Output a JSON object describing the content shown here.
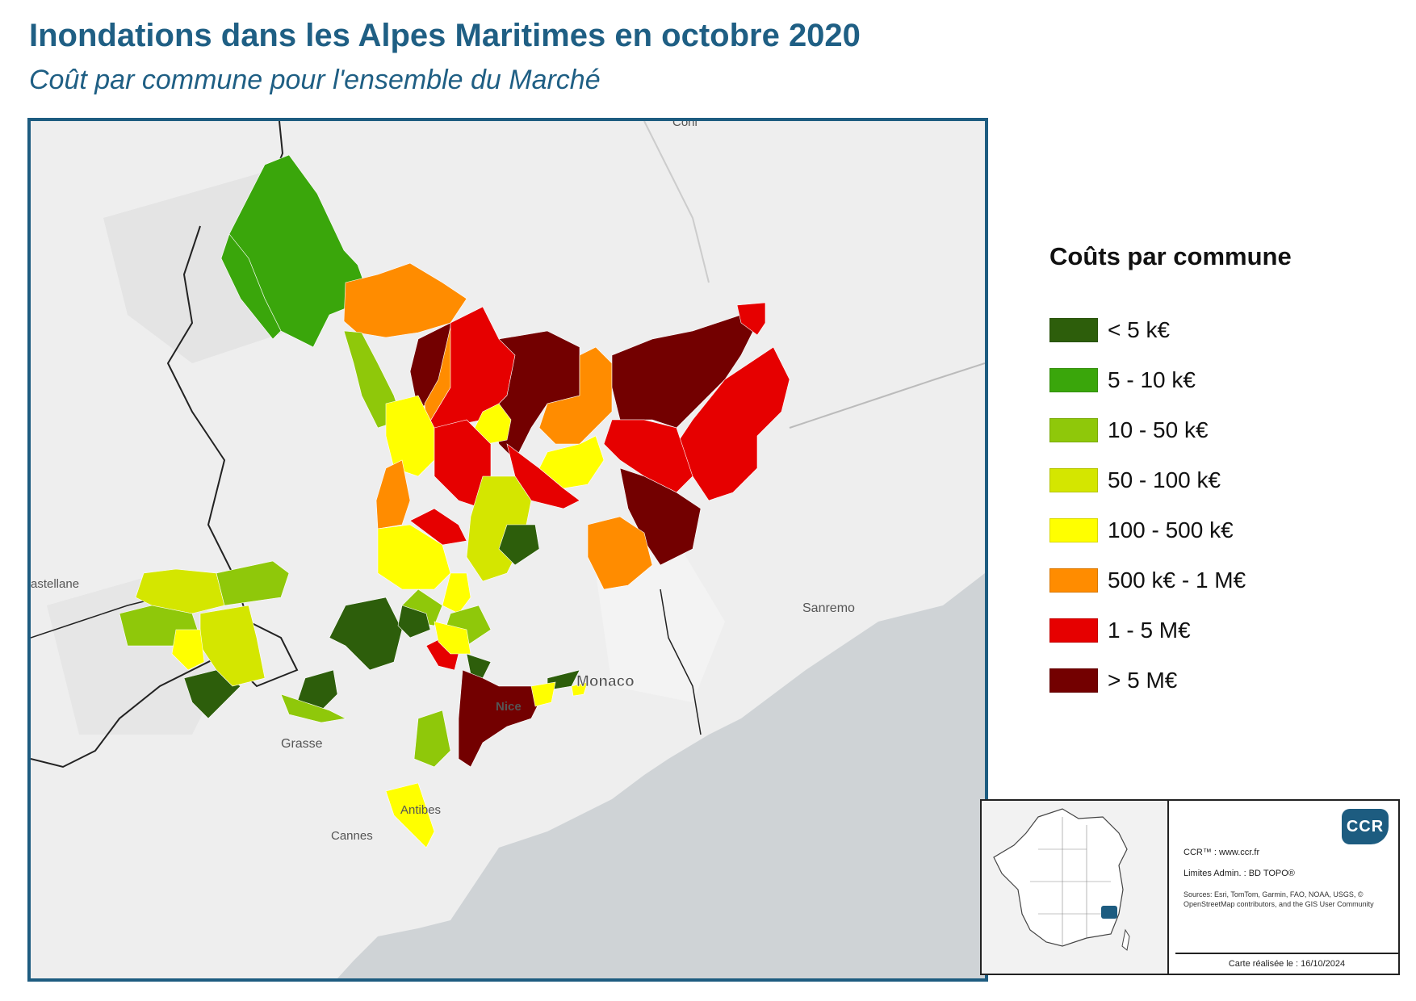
{
  "title": "Inondations dans les Alpes Maritimes en octobre 2020",
  "subtitle": "Coût par commune pour l'ensemble du Marché",
  "legend": {
    "title": "Coûts par commune",
    "items": [
      {
        "label": "< 5 k€",
        "color": "#2d5e0b"
      },
      {
        "label": "5 - 10 k€",
        "color": "#3aa60b"
      },
      {
        "label": "10 - 50 k€",
        "color": "#8fc80a"
      },
      {
        "label": "50 - 100 k€",
        "color": "#d4e600"
      },
      {
        "label": "100 - 500 k€",
        "color": "#ffff00"
      },
      {
        "label": "500 k€ - 1 M€",
        "color": "#ff8c00"
      },
      {
        "label": "1 - 5 M€",
        "color": "#e60000"
      },
      {
        "label": "> 5 M€",
        "color": "#730000"
      }
    ]
  },
  "map_labels": {
    "coni": "Coni",
    "castellane": "astellane",
    "sanremo": "Sanremo",
    "monaco": "Monaco",
    "nice": "Nice",
    "grasse": "Grasse",
    "antibes": "Antibes",
    "cannes": "Cannes"
  },
  "cartouche": {
    "logo": "CCR",
    "site": "CCR™ : www.ccr.fr",
    "limits": "Limites Admin. : BD TOPO®",
    "sources": "Sources: Esri, TomTom, Garmin, FAO, NOAA, USGS, © OpenStreetMap contributors, and the GIS User Community",
    "date": "Carte réalisée le : 16/10/2024"
  },
  "colors": {
    "title": "#1f5f84",
    "frame": "#1d5c80",
    "sea": "#cfd3d6",
    "land": "#eeeeee"
  }
}
